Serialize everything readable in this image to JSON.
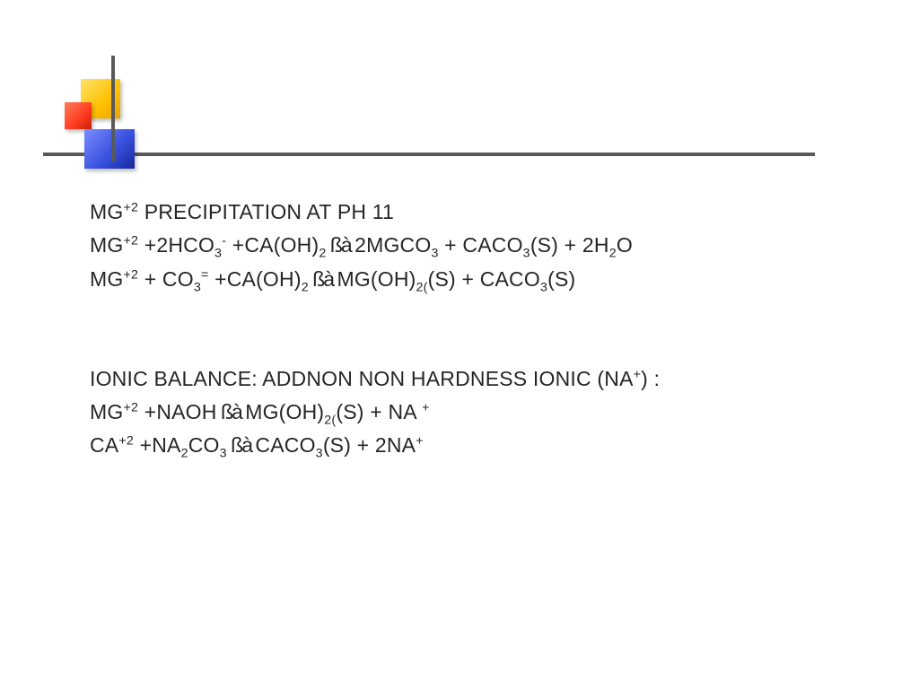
{
  "style": {
    "background_color": "#ffffff",
    "text_color": "#262626",
    "font_family": "Arial",
    "font_size_pt": 18,
    "line_height": 1.62,
    "hbar_color": "#595959",
    "vbar_color": "#595959",
    "square_yellow": "#ffc000",
    "square_red": "#ff3b1f",
    "square_blue": "#3a52e0"
  },
  "l1": {
    "a": "MG",
    "sup1": "+2",
    "b": " PRECIPITATION AT PH 11"
  },
  "l2": {
    "a": "MG",
    "sup1": "+2",
    "b": " +2HCO",
    "sub1": "3",
    "sup2": "-",
    "c": " +CA(OH)",
    "sub2": "2",
    "arrow": "  ßà  ",
    "d": "2MGCO",
    "sub3": "3",
    "e": " + CACO",
    "sub4": "3",
    "f": "(S) + 2H",
    "sub5": "2",
    "g": "O"
  },
  "l3": {
    "a": "MG",
    "sup1": "+2",
    "b": " + CO",
    "sub1": "3",
    "sup2": "=",
    "c": "   +CA(OH)",
    "sub2": "2",
    "arrow": "  ßà   ",
    "d": "MG(OH)",
    "sub3": "2(",
    "e": "(S) + CACO",
    "sub4": "3",
    "f": "(S)"
  },
  "l4": {
    "a": "IONIC BALANCE: ADDNON NON HARDNESS IONIC (NA",
    "sup1": "+",
    "b": ") :"
  },
  "l5": {
    "a": "MG",
    "sup1": "+2",
    "b": " +NAOH",
    "arrow": "    ßà   ",
    "c": "MG(OH)",
    "sub1": "2(",
    "d": "(S) + NA ",
    "sup2": "+"
  },
  "l6": {
    "a": "CA",
    "sup1": "+2",
    "b": "  +NA",
    "sub1": "2",
    "c": "CO",
    "sub2": "3",
    "arrow": "  ßà   ",
    "d": "CACO",
    "sub3": "3",
    "e": "(S) + 2NA",
    "sup2": "+"
  }
}
